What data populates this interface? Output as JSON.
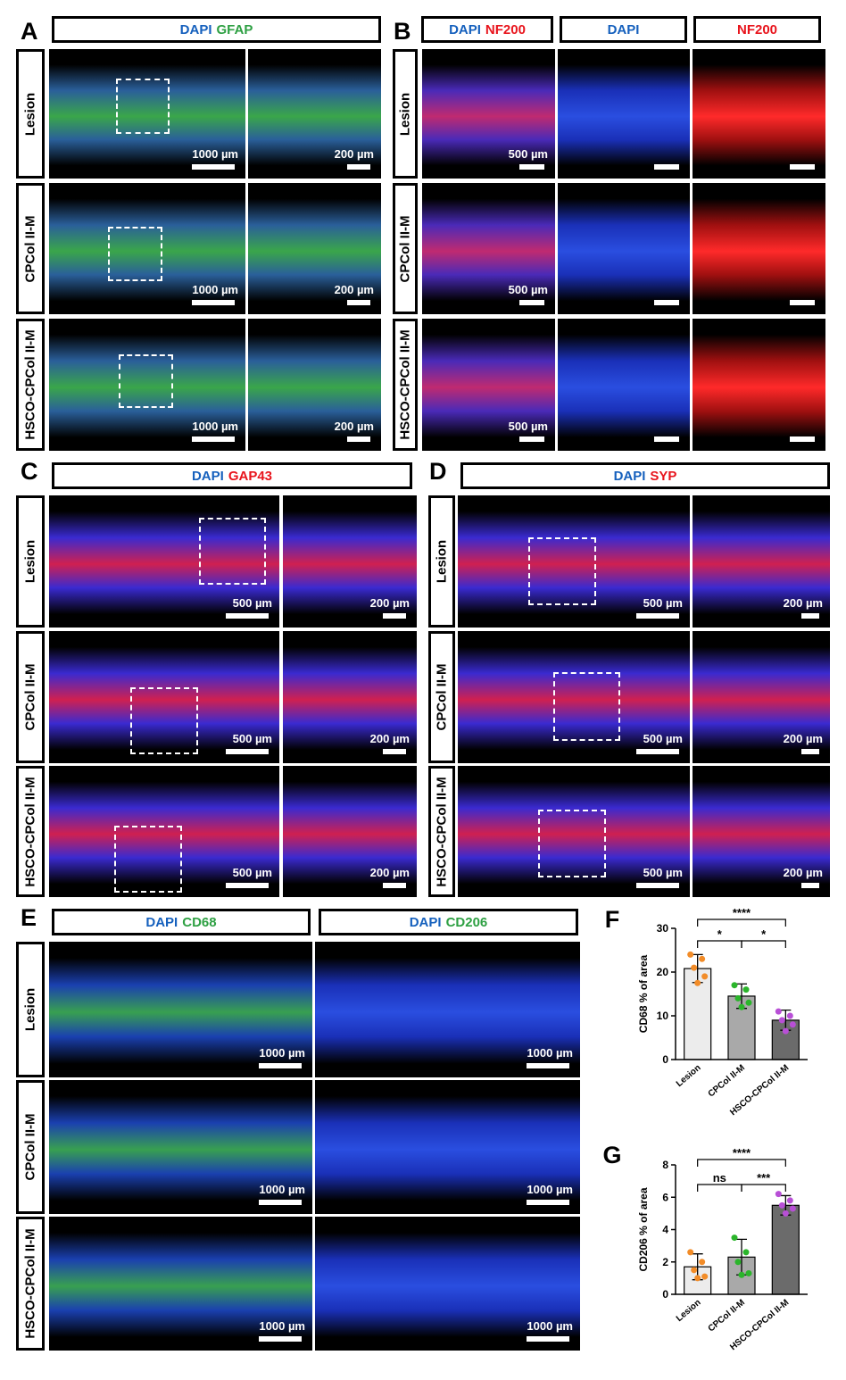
{
  "panels": [
    {
      "label": "A",
      "headers": [
        [
          "DAPI",
          "GFAP"
        ]
      ],
      "rows": [
        "Lesion",
        "CPCol II-M",
        "HSCO-CPCol II-M"
      ],
      "scale_bars": [
        [
          "1000 µm",
          "200 µm"
        ],
        [
          "1000 µm",
          "200 µm"
        ],
        [
          "1000 µm",
          "200 µm"
        ]
      ]
    },
    {
      "label": "B",
      "headers": [
        [
          "DAPI",
          "NF200"
        ],
        [
          "DAPI"
        ],
        [
          "NF200"
        ]
      ],
      "rows": [
        "Lesion",
        "CPCol II-M",
        "HSCO-CPCol II-M"
      ],
      "scale_bars": [
        [
          "500 µm"
        ],
        [
          "500 µm"
        ],
        [
          "500 µm"
        ]
      ]
    },
    {
      "label": "C",
      "headers": [
        [
          "DAPI",
          "GAP43"
        ]
      ],
      "rows": [
        "Lesion",
        "CPCol II-M",
        "HSCO-CPCol II-M"
      ],
      "scale_bars": [
        [
          "500 µm",
          "200 µm"
        ],
        [
          "500 µm",
          "200 µm"
        ],
        [
          "500 µm",
          "200 µm"
        ]
      ]
    },
    {
      "label": "D",
      "headers": [
        [
          "DAPI",
          "SYP"
        ]
      ],
      "rows": [
        "Lesion",
        "CPCol II-M",
        "HSCO-CPCol II-M"
      ],
      "scale_bars": [
        [
          "500 µm",
          "200 µm"
        ],
        [
          "500 µm",
          "200 µm"
        ],
        [
          "500 µm",
          "200 µm"
        ]
      ]
    },
    {
      "label": "E",
      "headers": [
        [
          "DAPI",
          "CD68"
        ],
        [
          "DAPI",
          "CD206"
        ]
      ],
      "rows": [
        "Lesion",
        "CPCol II-M",
        "HSCO-CPCol II-M"
      ],
      "scale_bars": [
        [
          "1000 µm",
          "1000 µm"
        ],
        [
          "1000 µm",
          "1000 µm"
        ],
        [
          "1000 µm",
          "1000 µm"
        ]
      ]
    }
  ],
  "chart_data": [
    {
      "type": "bar",
      "label": "F",
      "ylabel": "CD68 % of area",
      "categories": [
        "Lesion",
        "CPCol II-M",
        "HSCO-CPCol II-M"
      ],
      "values": [
        20.8,
        14.5,
        9.0
      ],
      "errors": [
        3.2,
        2.8,
        2.3
      ],
      "points": [
        [
          24,
          23,
          21,
          19,
          17.5
        ],
        [
          17,
          16,
          14,
          13,
          12
        ],
        [
          11,
          10,
          9,
          8,
          6.5
        ]
      ],
      "colors": [
        "#ececec",
        "#a9a9a9",
        "#6b6b6b"
      ],
      "point_colors": [
        "#f28c28",
        "#2bb52b",
        "#b84fd6"
      ],
      "ylim": [
        0,
        30
      ],
      "yticks": [
        0,
        10,
        20,
        30
      ],
      "significance": [
        "****",
        "*",
        "*"
      ]
    },
    {
      "type": "bar",
      "label": "G",
      "ylabel": "CD206 % of area",
      "categories": [
        "Lesion",
        "CPCol II-M",
        "HSCO-CPCol II-M"
      ],
      "values": [
        1.7,
        2.3,
        5.5
      ],
      "errors": [
        0.8,
        1.1,
        0.6
      ],
      "points": [
        [
          2.6,
          2.0,
          1.5,
          1.1,
          1.0
        ],
        [
          3.5,
          2.6,
          2.0,
          1.3,
          1.2
        ],
        [
          6.2,
          5.8,
          5.5,
          5.3,
          5.0
        ]
      ],
      "colors": [
        "#ececec",
        "#a9a9a9",
        "#6b6b6b"
      ],
      "point_colors": [
        "#f28c28",
        "#2bb52b",
        "#b84fd6"
      ],
      "ylim": [
        0,
        8
      ],
      "yticks": [
        0,
        2,
        4,
        6,
        8
      ],
      "significance": [
        "****",
        "ns",
        "***"
      ]
    }
  ]
}
